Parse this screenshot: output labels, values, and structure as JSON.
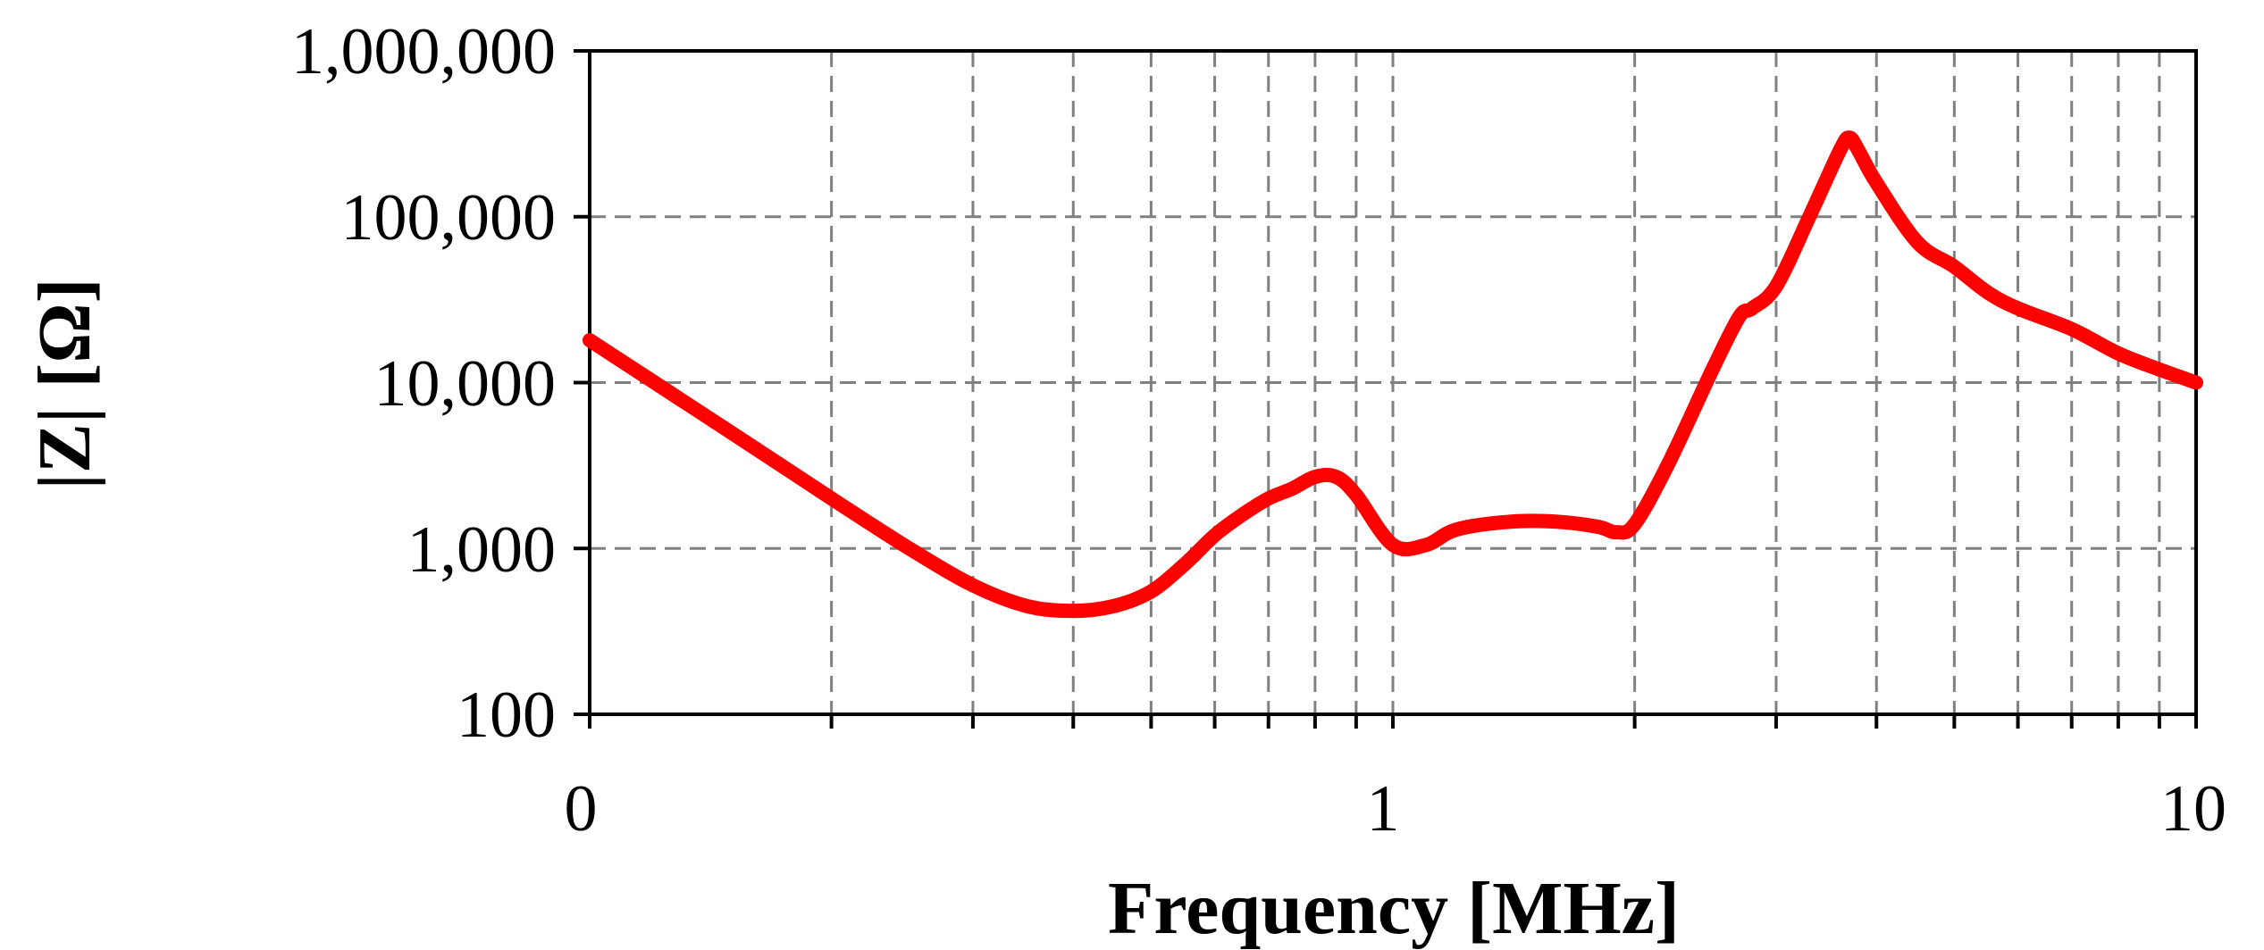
{
  "chart_data": {
    "type": "line",
    "title": "",
    "xlabel": "Frequency [MHz]",
    "ylabel": "|Z| [Ω]",
    "x_scale": "log",
    "y_scale": "log",
    "xlim": [
      0.1,
      10
    ],
    "ylim": [
      100,
      1000000
    ],
    "x_tick_labels": [
      "0",
      "1",
      "10"
    ],
    "y_tick_labels": [
      "100",
      "1,000",
      "10,000",
      "100,000",
      "1,000,000"
    ],
    "grid": true,
    "legend": "none",
    "series": [
      {
        "color": "#ff0000",
        "x": [
          0.1,
          0.15,
          0.2,
          0.25,
          0.3,
          0.35,
          0.4,
          0.45,
          0.5,
          0.55,
          0.6,
          0.65,
          0.7,
          0.75,
          0.8,
          0.85,
          0.9,
          1.0,
          1.1,
          1.2,
          1.4,
          1.6,
          1.8,
          1.9,
          2.0,
          2.2,
          2.5,
          2.7,
          2.8,
          3.0,
          3.3,
          3.6,
          3.7,
          3.8,
          4.0,
          4.5,
          5.0,
          5.5,
          6.0,
          7.0,
          8.0,
          9.0,
          10.0
        ],
        "y": [
          18000,
          5000,
          2000,
          1000,
          600,
          450,
          420,
          450,
          550,
          800,
          1200,
          1600,
          2000,
          2300,
          2700,
          2700,
          2100,
          1050,
          1050,
          1300,
          1450,
          1450,
          1350,
          1250,
          1400,
          3200,
          12000,
          25000,
          28000,
          38000,
          100000,
          250000,
          300000,
          250000,
          160000,
          70000,
          50000,
          35000,
          28000,
          21000,
          15000,
          12000,
          10000
        ]
      }
    ]
  },
  "axis": {
    "ylabel": "|Z| [Ω]",
    "xlabel": "Frequency [MHz]",
    "y_ticks": [
      "100",
      "1,000",
      "10,000",
      "100,000",
      "1,000,000"
    ],
    "x_ticks": [
      "0",
      "1",
      "10"
    ]
  }
}
